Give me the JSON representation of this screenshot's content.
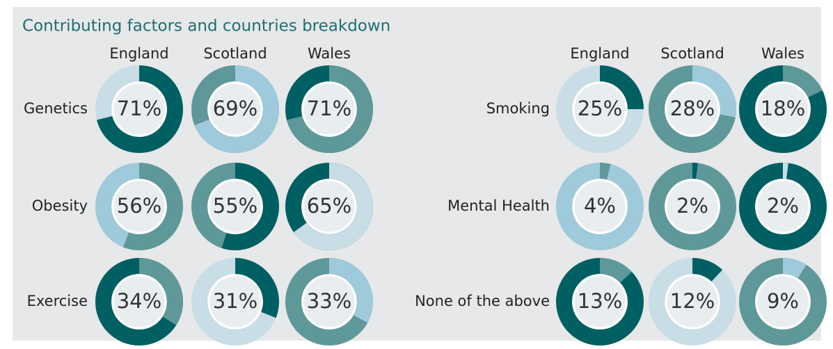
{
  "chart_data": {
    "type": "donut",
    "title": "Contributing factors and countries breakdown",
    "panels": [
      {
        "categories": [
          "Genetics",
          "Obesity",
          "Exercise"
        ],
        "series": [
          {
            "name": "England",
            "values": [
              71,
              56,
              34
            ],
            "value_labels": [
              "71%",
              "56%",
              "34%"
            ],
            "colors": [
              "#005f63",
              "#5f9898",
              "#5f9898"
            ],
            "rest_colors": [
              "#c9dde6",
              "#9ecadb",
              "#005f63"
            ]
          },
          {
            "name": "Scotland",
            "values": [
              69,
              55,
              31
            ],
            "value_labels": [
              "69%",
              "55%",
              "31%"
            ],
            "colors": [
              "#9ecadb",
              "#005f63",
              "#005f63"
            ],
            "rest_colors": [
              "#5f9898",
              "#5f9898",
              "#c9dde6"
            ]
          },
          {
            "name": "Wales",
            "values": [
              71,
              65,
              33
            ],
            "value_labels": [
              "71%",
              "65%",
              "33%"
            ],
            "colors": [
              "#5f9898",
              "#c9dde6",
              "#9ecadb"
            ],
            "rest_colors": [
              "#005f63",
              "#005f63",
              "#5f9898"
            ]
          }
        ]
      },
      {
        "categories": [
          "Smoking",
          "Mental Health",
          "None of the above"
        ],
        "series": [
          {
            "name": "England",
            "values": [
              25,
              4,
              13
            ],
            "value_labels": [
              "25%",
              "4%",
              "13%"
            ],
            "colors": [
              "#005f63",
              "#5f9898",
              "#5f9898"
            ],
            "rest_colors": [
              "#c9dde6",
              "#9ecadb",
              "#005f63"
            ]
          },
          {
            "name": "Scotland",
            "values": [
              28,
              2,
              12
            ],
            "value_labels": [
              "28%",
              "2%",
              "12%"
            ],
            "colors": [
              "#9ecadb",
              "#005f63",
              "#005f63"
            ],
            "rest_colors": [
              "#5f9898",
              "#5f9898",
              "#c9dde6"
            ]
          },
          {
            "name": "Wales",
            "values": [
              18,
              2,
              9
            ],
            "value_labels": [
              "18%",
              "2%",
              "9%"
            ],
            "colors": [
              "#5f9898",
              "#c9dde6",
              "#9ecadb"
            ],
            "rest_colors": [
              "#005f63",
              "#005f63",
              "#5f9898"
            ]
          }
        ]
      }
    ]
  }
}
